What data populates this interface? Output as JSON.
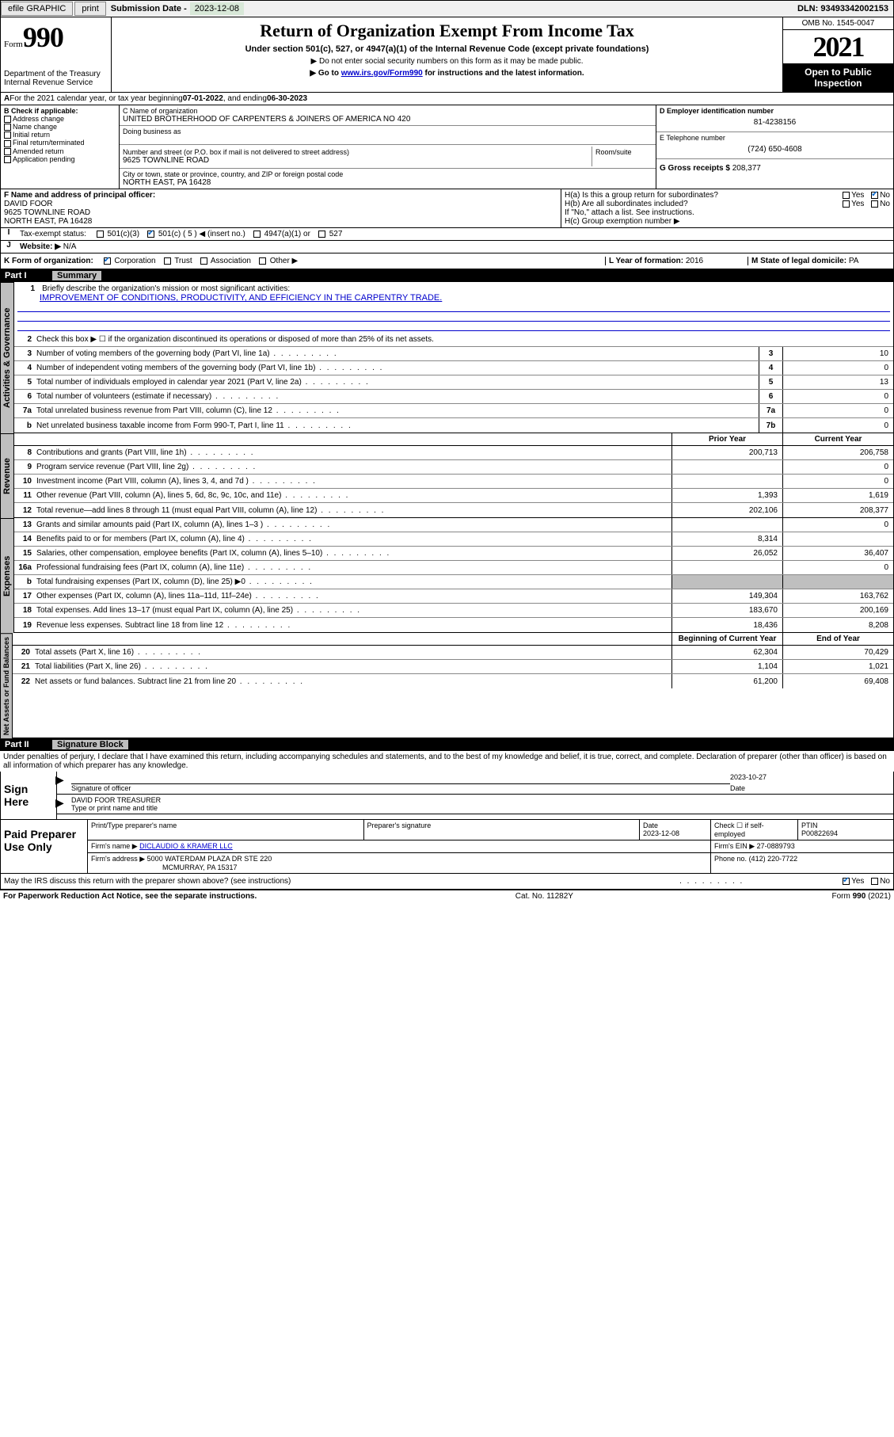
{
  "topbar": {
    "efile": "efile GRAPHIC",
    "print": "print",
    "subdate_label": "Submission Date - ",
    "subdate": "2023-12-08",
    "dln_label": "DLN: ",
    "dln": "93493342002153"
  },
  "header": {
    "form_word": "Form",
    "form_num": "990",
    "dept": "Department of the Treasury\nInternal Revenue Service",
    "title": "Return of Organization Exempt From Income Tax",
    "subtitle": "Under section 501(c), 527, or 4947(a)(1) of the Internal Revenue Code (except private foundations)",
    "note1": "▶ Do not enter social security numbers on this form as it may be made public.",
    "note2_pre": "▶ Go to ",
    "note2_link": "www.irs.gov/Form990",
    "note2_post": " for instructions and the latest information.",
    "omb": "OMB No. 1545-0047",
    "year": "2021",
    "open_pub": "Open to Public Inspection"
  },
  "period": {
    "line_a": "For the 2021 calendar year, or tax year beginning ",
    "begin": "07-01-2022",
    "mid": " , and ending ",
    "end": "06-30-2023"
  },
  "block_b": {
    "header": "B Check if applicable:",
    "items": [
      "Address change",
      "Name change",
      "Initial return",
      "Final return/terminated",
      "Amended return",
      "Application pending"
    ]
  },
  "block_c": {
    "label": "C Name of organization",
    "name": "UNITED BROTHERHOOD OF CARPENTERS & JOINERS OF AMERICA NO 420",
    "dba_label": "Doing business as",
    "addr_label": "Number and street (or P.O. box if mail is not delivered to street address)",
    "room_label": "Room/suite",
    "addr": "9625 TOWNLINE ROAD",
    "city_label": "City or town, state or province, country, and ZIP or foreign postal code",
    "city": "NORTH EAST, PA  16428"
  },
  "block_d": {
    "label": "D Employer identification number",
    "value": "81-4238156"
  },
  "block_e": {
    "label": "E Telephone number",
    "value": "(724) 650-4608"
  },
  "block_g": {
    "label": "G Gross receipts $ ",
    "value": "208,377"
  },
  "block_f": {
    "label": "F Name and address of principal officer:",
    "name": "DAVID FOOR",
    "addr1": "9625 TOWNLINE ROAD",
    "addr2": "NORTH EAST, PA  16428"
  },
  "block_h": {
    "ha": "H(a)  Is this a group return for subordinates?",
    "hb": "H(b)  Are all subordinates included?",
    "hb_note": "If \"No,\" attach a list. See instructions.",
    "hc": "H(c)  Group exemption number ▶",
    "yes": "Yes",
    "no": "No"
  },
  "block_i": {
    "label": "Tax-exempt status:",
    "opts": [
      "501(c)(3)",
      "501(c) ( 5 ) ◀ (insert no.)",
      "4947(a)(1) or",
      "527"
    ]
  },
  "block_j": {
    "label": "Website: ▶",
    "value": "N/A"
  },
  "block_k": {
    "label": "K Form of organization:",
    "opts": [
      "Corporation",
      "Trust",
      "Association",
      "Other ▶"
    ]
  },
  "block_l": {
    "label": "L Year of formation: ",
    "value": "2016"
  },
  "block_m": {
    "label": "M State of legal domicile: ",
    "value": "PA"
  },
  "part1": {
    "num": "Part I",
    "title": "Summary"
  },
  "summary": {
    "q1": "Briefly describe the organization's mission or most significant activities:",
    "mission": "IMPROVEMENT OF CONDITIONS, PRODUCTIVITY, AND EFFICIENCY IN THE CARPENTRY TRADE.",
    "q2": "Check this box ▶ ☐  if the organization discontinued its operations or disposed of more than 25% of its net assets."
  },
  "vtabs": {
    "gov": "Activities & Governance",
    "rev": "Revenue",
    "exp": "Expenses",
    "net": "Net Assets or Fund Balances"
  },
  "col_headers": {
    "prior": "Prior Year",
    "current": "Current Year",
    "boy": "Beginning of Current Year",
    "eoy": "End of Year"
  },
  "gov_lines": [
    {
      "n": "3",
      "t": "Number of voting members of the governing body (Part VI, line 1a)",
      "box": "3",
      "v": "10"
    },
    {
      "n": "4",
      "t": "Number of independent voting members of the governing body (Part VI, line 1b)",
      "box": "4",
      "v": "0"
    },
    {
      "n": "5",
      "t": "Total number of individuals employed in calendar year 2021 (Part V, line 2a)",
      "box": "5",
      "v": "13"
    },
    {
      "n": "6",
      "t": "Total number of volunteers (estimate if necessary)",
      "box": "6",
      "v": "0"
    },
    {
      "n": "7a",
      "t": "Total unrelated business revenue from Part VIII, column (C), line 12",
      "box": "7a",
      "v": "0"
    },
    {
      "n": "b",
      "t": "Net unrelated business taxable income from Form 990-T, Part I, line 11",
      "box": "7b",
      "v": "0"
    }
  ],
  "rev_lines": [
    {
      "n": "8",
      "t": "Contributions and grants (Part VIII, line 1h)",
      "p": "200,713",
      "c": "206,758"
    },
    {
      "n": "9",
      "t": "Program service revenue (Part VIII, line 2g)",
      "p": "",
      "c": "0"
    },
    {
      "n": "10",
      "t": "Investment income (Part VIII, column (A), lines 3, 4, and 7d )",
      "p": "",
      "c": "0"
    },
    {
      "n": "11",
      "t": "Other revenue (Part VIII, column (A), lines 5, 6d, 8c, 9c, 10c, and 11e)",
      "p": "1,393",
      "c": "1,619"
    },
    {
      "n": "12",
      "t": "Total revenue—add lines 8 through 11 (must equal Part VIII, column (A), line 12)",
      "p": "202,106",
      "c": "208,377"
    }
  ],
  "exp_lines": [
    {
      "n": "13",
      "t": "Grants and similar amounts paid (Part IX, column (A), lines 1–3 )",
      "p": "",
      "c": "0"
    },
    {
      "n": "14",
      "t": "Benefits paid to or for members (Part IX, column (A), line 4)",
      "p": "8,314",
      "c": ""
    },
    {
      "n": "15",
      "t": "Salaries, other compensation, employee benefits (Part IX, column (A), lines 5–10)",
      "p": "26,052",
      "c": "36,407"
    },
    {
      "n": "16a",
      "t": "Professional fundraising fees (Part IX, column (A), line 11e)",
      "p": "",
      "c": "0"
    },
    {
      "n": "b",
      "t": "Total fundraising expenses (Part IX, column (D), line 25) ▶0",
      "p": "grey",
      "c": "grey"
    },
    {
      "n": "17",
      "t": "Other expenses (Part IX, column (A), lines 11a–11d, 11f–24e)",
      "p": "149,304",
      "c": "163,762"
    },
    {
      "n": "18",
      "t": "Total expenses. Add lines 13–17 (must equal Part IX, column (A), line 25)",
      "p": "183,670",
      "c": "200,169"
    },
    {
      "n": "19",
      "t": "Revenue less expenses. Subtract line 18 from line 12",
      "p": "18,436",
      "c": "8,208"
    }
  ],
  "net_lines": [
    {
      "n": "20",
      "t": "Total assets (Part X, line 16)",
      "p": "62,304",
      "c": "70,429"
    },
    {
      "n": "21",
      "t": "Total liabilities (Part X, line 26)",
      "p": "1,104",
      "c": "1,021"
    },
    {
      "n": "22",
      "t": "Net assets or fund balances. Subtract line 21 from line 20",
      "p": "61,200",
      "c": "69,408"
    }
  ],
  "part2": {
    "num": "Part II",
    "title": "Signature Block"
  },
  "perjury": "Under penalties of perjury, I declare that I have examined this return, including accompanying schedules and statements, and to the best of my knowledge and belief, it is true, correct, and complete. Declaration of preparer (other than officer) is based on all information of which preparer has any knowledge.",
  "sign": {
    "label": "Sign Here",
    "sig_of_officer": "Signature of officer",
    "date_label": "Date",
    "date": "2023-10-27",
    "name_title": "DAVID FOOR  TREASURER",
    "type_label": "Type or print name and title"
  },
  "prep": {
    "label": "Paid Preparer Use Only",
    "h_name": "Print/Type preparer's name",
    "h_sig": "Preparer's signature",
    "h_date": "Date",
    "date": "2023-12-08",
    "h_check": "Check ☐ if self-employed",
    "h_ptin": "PTIN",
    "ptin": "P00822694",
    "firm_name_l": "Firm's name    ▶",
    "firm_name": "DICLAUDIO & KRAMER LLC",
    "firm_ein_l": "Firm's EIN ▶",
    "firm_ein": "27-0889793",
    "firm_addr_l": "Firm's address ▶",
    "firm_addr1": "5000 WATERDAM PLAZA DR STE 220",
    "firm_addr2": "MCMURRAY, PA  15317",
    "phone_l": "Phone no.",
    "phone": "(412) 220-7722"
  },
  "irs_discuss": {
    "q": "May the IRS discuss this return with the preparer shown above? (see instructions)",
    "yes": "Yes",
    "no": "No"
  },
  "footer": {
    "left": "For Paperwork Reduction Act Notice, see the separate instructions.",
    "mid": "Cat. No. 11282Y",
    "right_pre": "Form ",
    "right_b": "990",
    "right_post": " (2021)"
  },
  "colors": {
    "link": "#0000cc",
    "grey": "#bfbfbf",
    "check": "#0066cc"
  }
}
